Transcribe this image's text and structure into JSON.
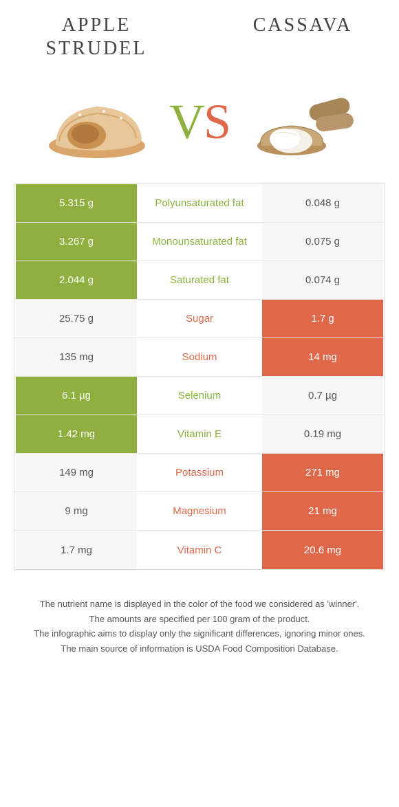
{
  "colors": {
    "left": "#8fb03e",
    "right": "#e0684a",
    "neutral_bg": "#f7f7f7",
    "neutral_text": "#555555"
  },
  "food_left": {
    "title": "Apple Strudel"
  },
  "food_right": {
    "title": "Cassava"
  },
  "vs": {
    "v": "V",
    "s": "S"
  },
  "rows": [
    {
      "label": "Polyunsaturated fat",
      "left": "5.315 g",
      "right": "0.048 g",
      "winner": "left"
    },
    {
      "label": "Monounsaturated fat",
      "left": "3.267 g",
      "right": "0.075 g",
      "winner": "left"
    },
    {
      "label": "Saturated fat",
      "left": "2.044 g",
      "right": "0.074 g",
      "winner": "left"
    },
    {
      "label": "Sugar",
      "left": "25.75 g",
      "right": "1.7 g",
      "winner": "right"
    },
    {
      "label": "Sodium",
      "left": "135 mg",
      "right": "14 mg",
      "winner": "right"
    },
    {
      "label": "Selenium",
      "left": "6.1 µg",
      "right": "0.7 µg",
      "winner": "left"
    },
    {
      "label": "Vitamin E",
      "left": "1.42 mg",
      "right": "0.19 mg",
      "winner": "left"
    },
    {
      "label": "Potassium",
      "left": "149 mg",
      "right": "271 mg",
      "winner": "right"
    },
    {
      "label": "Magnesium",
      "left": "9 mg",
      "right": "21 mg",
      "winner": "right"
    },
    {
      "label": "Vitamin C",
      "left": "1.7 mg",
      "right": "20.6 mg",
      "winner": "right"
    }
  ],
  "notes": [
    "The nutrient name is displayed in the color of the food we considered as 'winner'.",
    "The amounts are specified per 100 gram of the product.",
    "The infographic aims to display only the significant differences, ignoring minor ones.",
    "The main source of information is USDA Food Composition Database."
  ]
}
